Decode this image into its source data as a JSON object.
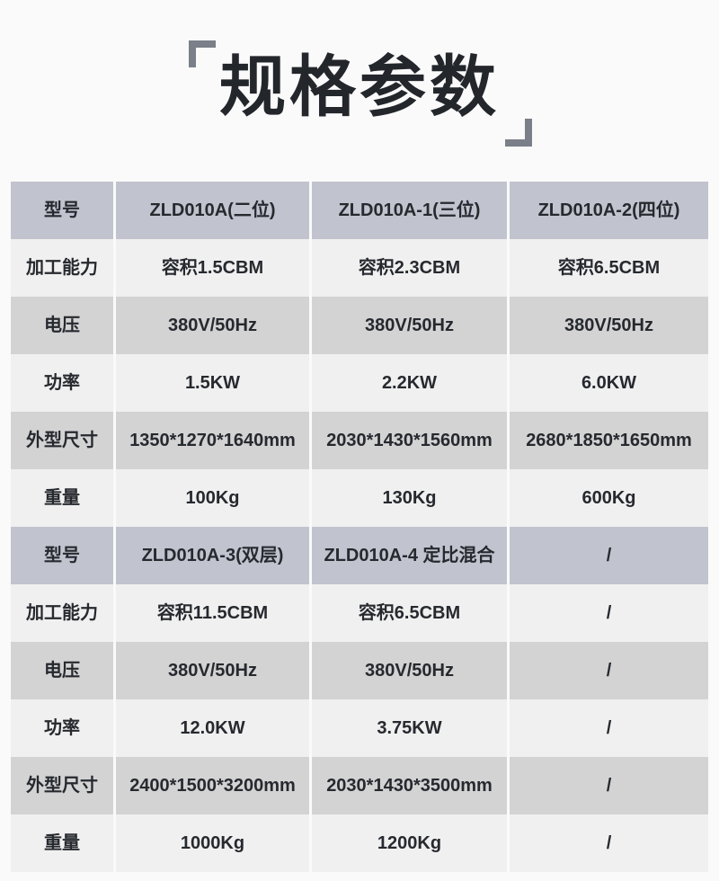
{
  "title": {
    "text": "规格参数"
  },
  "colors": {
    "page_bg": "#fafafa",
    "title_text": "#23262b",
    "bracket": "#7a7f89",
    "header_row_bg": "#c1c4ce",
    "light_row_bg": "#f0f0f0",
    "dark_row_bg": "#d3d3d4",
    "cell_text": "#26292e"
  },
  "table": {
    "rows": [
      {
        "type": "header",
        "label": "型号",
        "values": [
          "ZLD010A(二位)",
          "ZLD010A-1(三位)",
          "ZLD010A-2(四位)"
        ]
      },
      {
        "type": "light",
        "label": "加工能力",
        "values": [
          "容积1.5CBM",
          "容积2.3CBM",
          "容积6.5CBM"
        ]
      },
      {
        "type": "dark",
        "label": "电压",
        "values": [
          "380V/50Hz",
          "380V/50Hz",
          "380V/50Hz"
        ]
      },
      {
        "type": "light",
        "label": "功率",
        "values": [
          "1.5KW",
          "2.2KW",
          "6.0KW"
        ]
      },
      {
        "type": "dark",
        "label": "外型尺寸",
        "values": [
          "1350*1270*1640mm",
          "2030*1430*1560mm",
          "2680*1850*1650mm"
        ]
      },
      {
        "type": "light",
        "label": "重量",
        "values": [
          "100Kg",
          "130Kg",
          "600Kg"
        ]
      },
      {
        "type": "header",
        "label": "型号",
        "values": [
          "ZLD010A-3(双层)",
          "ZLD010A-4 定比混合",
          "/"
        ]
      },
      {
        "type": "light",
        "label": "加工能力",
        "values": [
          "容积11.5CBM",
          "容积6.5CBM",
          "/"
        ]
      },
      {
        "type": "dark",
        "label": "电压",
        "values": [
          "380V/50Hz",
          "380V/50Hz",
          "/"
        ]
      },
      {
        "type": "light",
        "label": "功率",
        "values": [
          "12.0KW",
          "3.75KW",
          "/"
        ]
      },
      {
        "type": "dark",
        "label": "外型尺寸",
        "values": [
          "2400*1500*3200mm",
          "2030*1430*3500mm",
          "/"
        ]
      },
      {
        "type": "light",
        "label": "重量",
        "values": [
          "1000Kg",
          "1200Kg",
          "/"
        ]
      }
    ]
  }
}
